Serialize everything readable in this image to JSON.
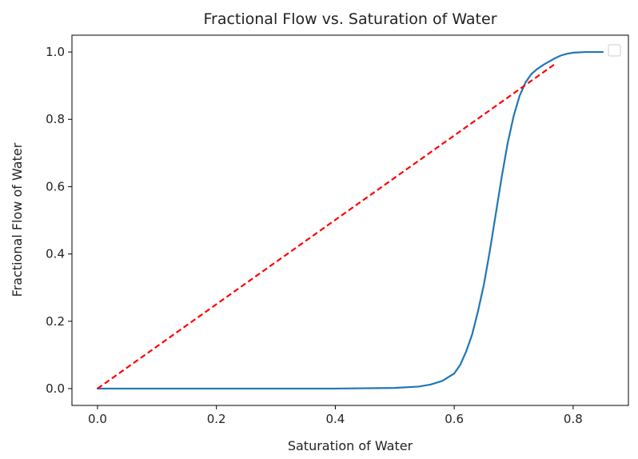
{
  "chart_data": {
    "type": "line",
    "title": "Fractional Flow vs. Saturation of Water",
    "xlabel": "Saturation of Water",
    "ylabel": "Fractional Flow of Water",
    "xlim": [
      -0.043,
      0.893
    ],
    "ylim": [
      -0.05,
      1.05
    ],
    "xticks": [
      "0.0",
      "0.2",
      "0.4",
      "0.6",
      "0.8"
    ],
    "yticks": [
      "0.0",
      "0.2",
      "0.4",
      "0.6",
      "0.8",
      "1.0"
    ],
    "grid": false,
    "legend_position": "top-right",
    "legend_entries": [],
    "series": [
      {
        "style": "solid",
        "color": "#1f77b4",
        "x": [
          0.0,
          0.4,
          0.5,
          0.54,
          0.56,
          0.58,
          0.6,
          0.61,
          0.62,
          0.63,
          0.64,
          0.65,
          0.66,
          0.67,
          0.68,
          0.69,
          0.7,
          0.71,
          0.72,
          0.73,
          0.74,
          0.75,
          0.76,
          0.77,
          0.78,
          0.79,
          0.8,
          0.82,
          0.85
        ],
        "y": [
          0.0,
          0.0,
          0.002,
          0.006,
          0.012,
          0.023,
          0.045,
          0.07,
          0.11,
          0.16,
          0.23,
          0.31,
          0.41,
          0.52,
          0.63,
          0.73,
          0.81,
          0.87,
          0.91,
          0.935,
          0.95,
          0.962,
          0.972,
          0.982,
          0.99,
          0.995,
          0.998,
          1.0,
          1.0
        ]
      },
      {
        "style": "dashed",
        "color": "#ff0000",
        "x": [
          0.0,
          0.77
        ],
        "y": [
          0.0,
          0.965
        ]
      }
    ]
  }
}
